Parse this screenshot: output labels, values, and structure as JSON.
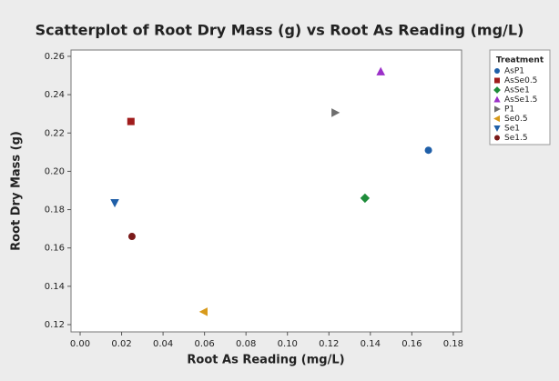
{
  "chart_data": {
    "type": "scatter",
    "title": "Scatterplot of Root Dry Mass (g) vs Root As Reading (mg/L)",
    "x_label": "Root As Reading (mg/L)",
    "y_label": "Root Dry Mass (g)",
    "legend_title": "Treatment",
    "legend": "right",
    "xlim": [
      -0.0044,
      0.184
    ],
    "ylim": [
      0.1162,
      0.2633
    ],
    "xticks": [
      {
        "value": 0,
        "label": "0.00"
      },
      0.02,
      0.04,
      0.06,
      0.08,
      {
        "value": 0.1,
        "label": "0.10"
      },
      0.12,
      0.14,
      0.16,
      0.18
    ],
    "yticks": [
      0.12,
      0.14,
      0.16,
      0.18,
      {
        "value": 0.2,
        "label": "0.20"
      },
      0.22,
      0.24,
      0.26
    ],
    "series": [
      {
        "name": "AsP1",
        "color": "#1f5fa8",
        "marker": "circle",
        "x": [
          0.168
        ],
        "values": [
          0.211
        ]
      },
      {
        "name": "AsSe0.5",
        "color": "#a01c1c",
        "marker": "square",
        "x": [
          0.0245
        ],
        "values": [
          0.226
        ]
      },
      {
        "name": "AsSe1",
        "color": "#1e8c3a",
        "marker": "diamond",
        "x": [
          0.1374
        ],
        "values": [
          0.186
        ]
      },
      {
        "name": "AsSe1.5",
        "color": "#9b30c8",
        "marker": "triangle-up",
        "x": [
          0.145
        ],
        "values": [
          0.252
        ]
      },
      {
        "name": "P1",
        "color": "#6e6e6e",
        "marker": "triangle-right",
        "x": [
          0.123
        ],
        "values": [
          0.2306
        ]
      },
      {
        "name": "Se0.5",
        "color": "#d89a1a",
        "marker": "triangle-left",
        "x": [
          0.0597
        ],
        "values": [
          0.1267
        ]
      },
      {
        "name": "Se1",
        "color": "#1f5fa8",
        "marker": "triangle-down",
        "x": [
          0.0167
        ],
        "values": [
          0.1836
        ]
      },
      {
        "name": "Se1.5",
        "color": "#7a1a1a",
        "marker": "circle",
        "x": [
          0.025
        ],
        "values": [
          0.166
        ]
      }
    ]
  }
}
